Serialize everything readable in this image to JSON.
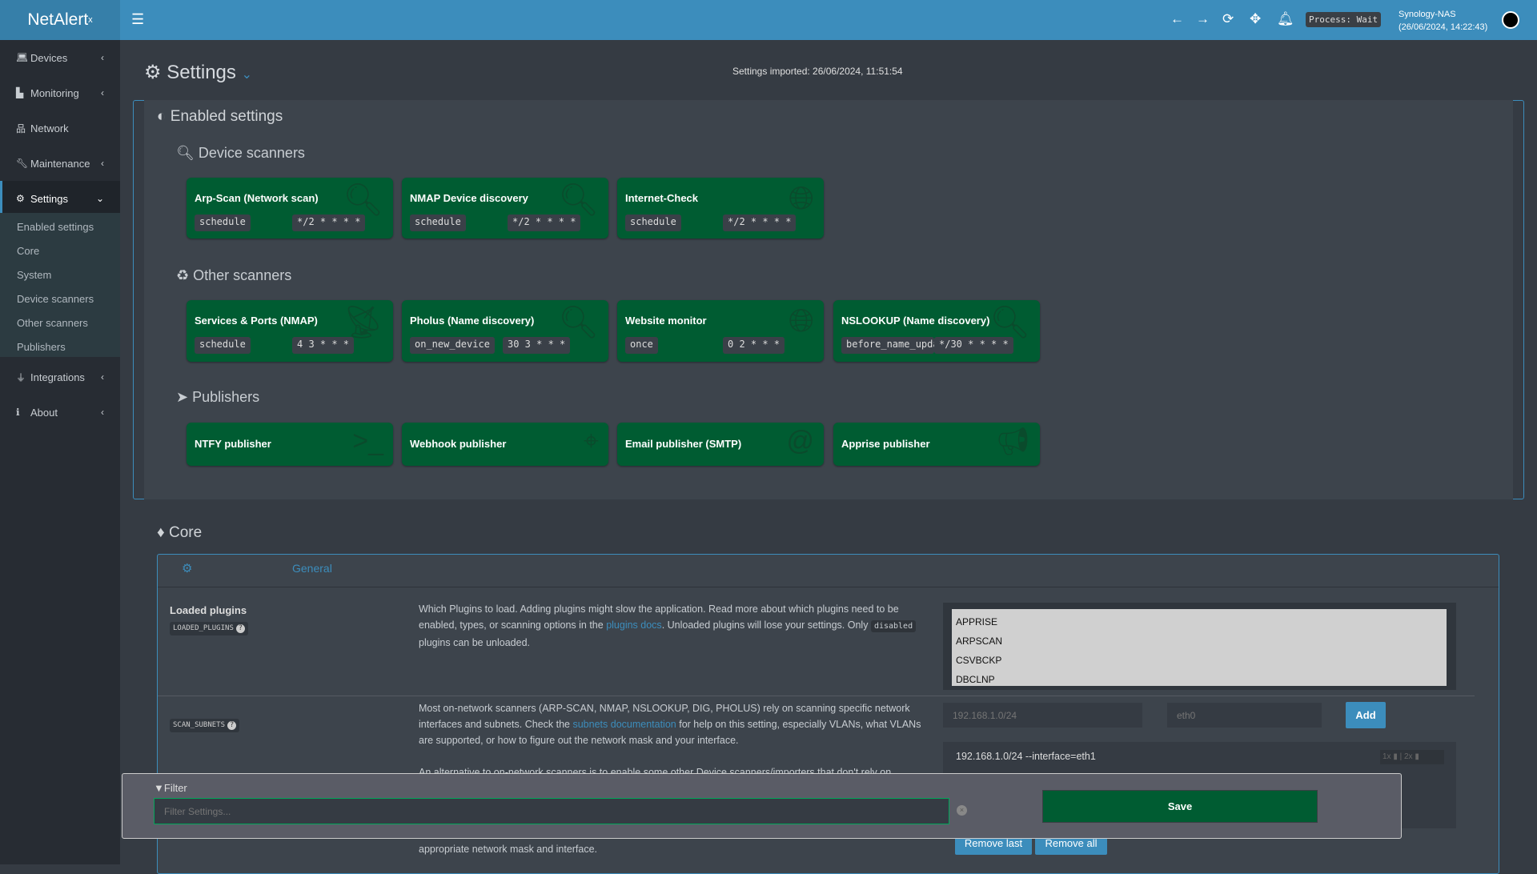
{
  "app": {
    "logo": "NetAlert",
    "logo_sup": "x",
    "process": "Process: Wait",
    "host": "Synology-NAS",
    "host_time": "(26/06/2024, 14:22:43)"
  },
  "sidebar": {
    "items": [
      {
        "label": "Devices",
        "icon": "laptop-icon"
      },
      {
        "label": "Monitoring",
        "icon": "chart-icon"
      },
      {
        "label": "Network",
        "icon": "sitemap-icon"
      },
      {
        "label": "Maintenance",
        "icon": "wrench-icon"
      },
      {
        "label": "Settings",
        "icon": "gear-icon"
      },
      {
        "label": "Integrations",
        "icon": "plug-icon"
      },
      {
        "label": "About",
        "icon": "info-icon"
      }
    ],
    "submenu": [
      "Enabled settings",
      "Core",
      "System",
      "Device scanners",
      "Other scanners",
      "Publishers"
    ]
  },
  "page": {
    "title": "Settings",
    "imported": "Settings imported: 26/06/2024, 11:51:54"
  },
  "enabled": {
    "title": "Enabled settings",
    "device_scanners": {
      "title": "Device scanners",
      "cards": [
        {
          "name": "Arp-Scan (Network scan)",
          "run": "schedule",
          "cron": "*/2 * * * *"
        },
        {
          "name": "NMAP Device discovery",
          "run": "schedule",
          "cron": "*/2 * * * *"
        },
        {
          "name": "Internet-Check",
          "run": "schedule",
          "cron": "*/2 * * * *"
        }
      ]
    },
    "other_scanners": {
      "title": "Other scanners",
      "cards": [
        {
          "name": "Services & Ports (NMAP)",
          "run": "schedule",
          "cron": "4 3 * * *"
        },
        {
          "name": "Pholus (Name discovery)",
          "run": "on_new_device",
          "cron": "30 3 * * *"
        },
        {
          "name": "Website monitor",
          "run": "once",
          "cron": "0 2 * * *"
        },
        {
          "name": "NSLOOKUP (Name discovery)",
          "run": "before_name_updates",
          "cron": "*/30 * * * *"
        }
      ]
    },
    "publishers": {
      "title": "Publishers",
      "cards": [
        {
          "name": "NTFY publisher"
        },
        {
          "name": "Webhook publisher"
        },
        {
          "name": "Email publisher (SMTP)"
        },
        {
          "name": "Apprise publisher"
        }
      ]
    }
  },
  "core": {
    "title": "Core",
    "tab": "General",
    "loaded_plugins": {
      "label": "Loaded plugins",
      "key": "LOADED_PLUGINS",
      "desc1": "Which Plugins to load. Adding plugins might slow the application. Read more about which plugins need to be enabled, types, or scanning options in the ",
      "link": "plugins docs",
      "desc2": ". Unloaded plugins will lose your settings. Only ",
      "code": "disabled",
      "desc3": " plugins can be unloaded.",
      "options": [
        "APPRISE",
        "ARPSCAN",
        "CSVBCKP",
        "DBCLNP"
      ]
    },
    "scan_subnets": {
      "key": "SCAN_SUBNETS",
      "desc1": "Most on-network scanners (ARP-SCAN, NMAP, NSLOOKUP, DIG, PHOLUS) rely on scanning specific network interfaces and subnets. Check the ",
      "link": "subnets documentation",
      "desc2": " for help on this setting, especially VLANs, what VLANs are supported, or how to figure out the network mask and your interface.",
      "desc4": "An alternative to on-network scanners is to enable some other Device scanners/importers that don't rely on",
      "desc5": "appropriate network mask and interface.",
      "subnet_placeholder": "192.168.1.0/24",
      "iface_placeholder": "eth0",
      "add": "Add",
      "entries": [
        "192.168.1.0/24 --interface=eth1"
      ],
      "remove_last": "Remove last",
      "remove_all": "Remove all"
    }
  },
  "filter": {
    "label": "Filter",
    "placeholder": "Filter Settings...",
    "save": "Save"
  }
}
